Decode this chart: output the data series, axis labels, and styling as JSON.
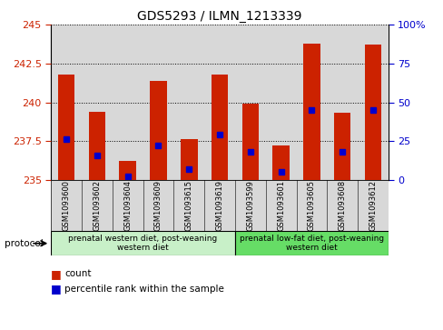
{
  "title": "GDS5293 / ILMN_1213339",
  "samples": [
    "GSM1093600",
    "GSM1093602",
    "GSM1093604",
    "GSM1093609",
    "GSM1093615",
    "GSM1093619",
    "GSM1093599",
    "GSM1093601",
    "GSM1093605",
    "GSM1093608",
    "GSM1093612"
  ],
  "bar_values": [
    241.8,
    239.4,
    236.2,
    241.4,
    237.6,
    241.8,
    239.9,
    237.2,
    243.8,
    239.3,
    243.7
  ],
  "percentile_values": [
    26,
    16,
    2,
    22,
    7,
    29,
    18,
    5,
    45,
    18,
    45
  ],
  "ymin": 235,
  "ymax": 245,
  "yticks": [
    235,
    237.5,
    240,
    242.5,
    245
  ],
  "y2min": 0,
  "y2max": 100,
  "y2ticks": [
    0,
    25,
    50,
    75,
    100
  ],
  "y2ticklabels": [
    "0",
    "25",
    "50",
    "75",
    "100%"
  ],
  "bar_color": "#cc2200",
  "dot_color": "#0000cc",
  "grid_color": "#000000",
  "plot_bg": "#d8d8d8",
  "group1_label": "prenatal western diet, post-weaning\nwestern diet",
  "group2_label": "prenatal low-fat diet, post-weaning\nwestern diet",
  "group1_color": "#c8f0c8",
  "group2_color": "#66dd66",
  "group1_count": 6,
  "group2_count": 5,
  "protocol_label": "protocol",
  "legend_count_label": "count",
  "legend_percentile_label": "percentile rank within the sample",
  "title_fontsize": 10,
  "axis_label_color_left": "#cc2200",
  "axis_label_color_right": "#0000cc",
  "tick_fontsize": 8,
  "sample_fontsize": 6,
  "sample_bg": "#d8d8d8"
}
